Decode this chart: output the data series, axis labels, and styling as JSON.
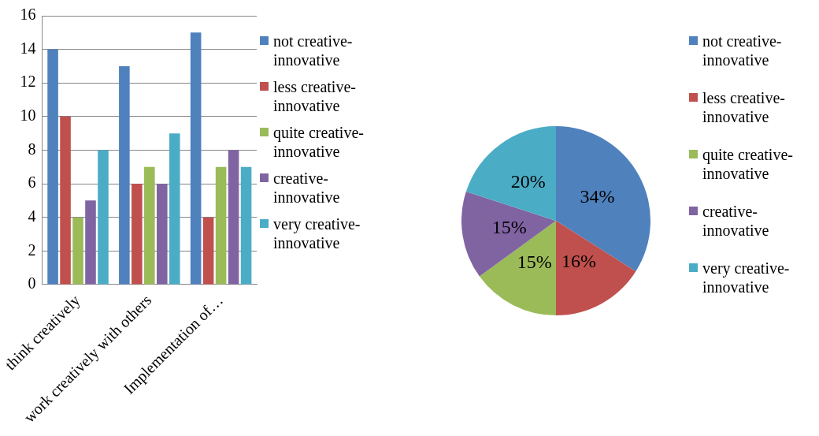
{
  "chart_data": [
    {
      "type": "bar",
      "categories": [
        "think creatively",
        "work creatively with others",
        "Implementation of…"
      ],
      "series": [
        {
          "name": "not creative-innovative",
          "color": "#4f81bd",
          "values": [
            14,
            13,
            15
          ]
        },
        {
          "name": "less creative-innovative",
          "color": "#c0504d",
          "values": [
            10,
            6,
            4
          ]
        },
        {
          "name": "quite creative-innovative",
          "color": "#9bbb59",
          "values": [
            4,
            7,
            7
          ]
        },
        {
          "name": "creative-innovative",
          "color": "#8064a2",
          "values": [
            5,
            6,
            8
          ]
        },
        {
          "name": "very creative-innovative",
          "color": "#4bacc6",
          "values": [
            8,
            9,
            7
          ]
        }
      ],
      "ylim": [
        0,
        16
      ],
      "yticks": [
        0,
        2,
        4,
        6,
        8,
        10,
        12,
        14,
        16
      ],
      "grid": "y",
      "legend": "right"
    },
    {
      "type": "pie",
      "categories": [
        "not creative-innovative",
        "less creative-innovative",
        "quite creative-innovative",
        "creative-innovative",
        "very creative-innovative"
      ],
      "values": [
        34,
        16,
        15,
        15,
        20
      ],
      "colors": [
        "#4f81bd",
        "#c0504d",
        "#9bbb59",
        "#8064a2",
        "#4bacc6"
      ],
      "value_labels": [
        "34%",
        "16%",
        "15%",
        "15%",
        "20%"
      ],
      "legend": "right"
    }
  ]
}
